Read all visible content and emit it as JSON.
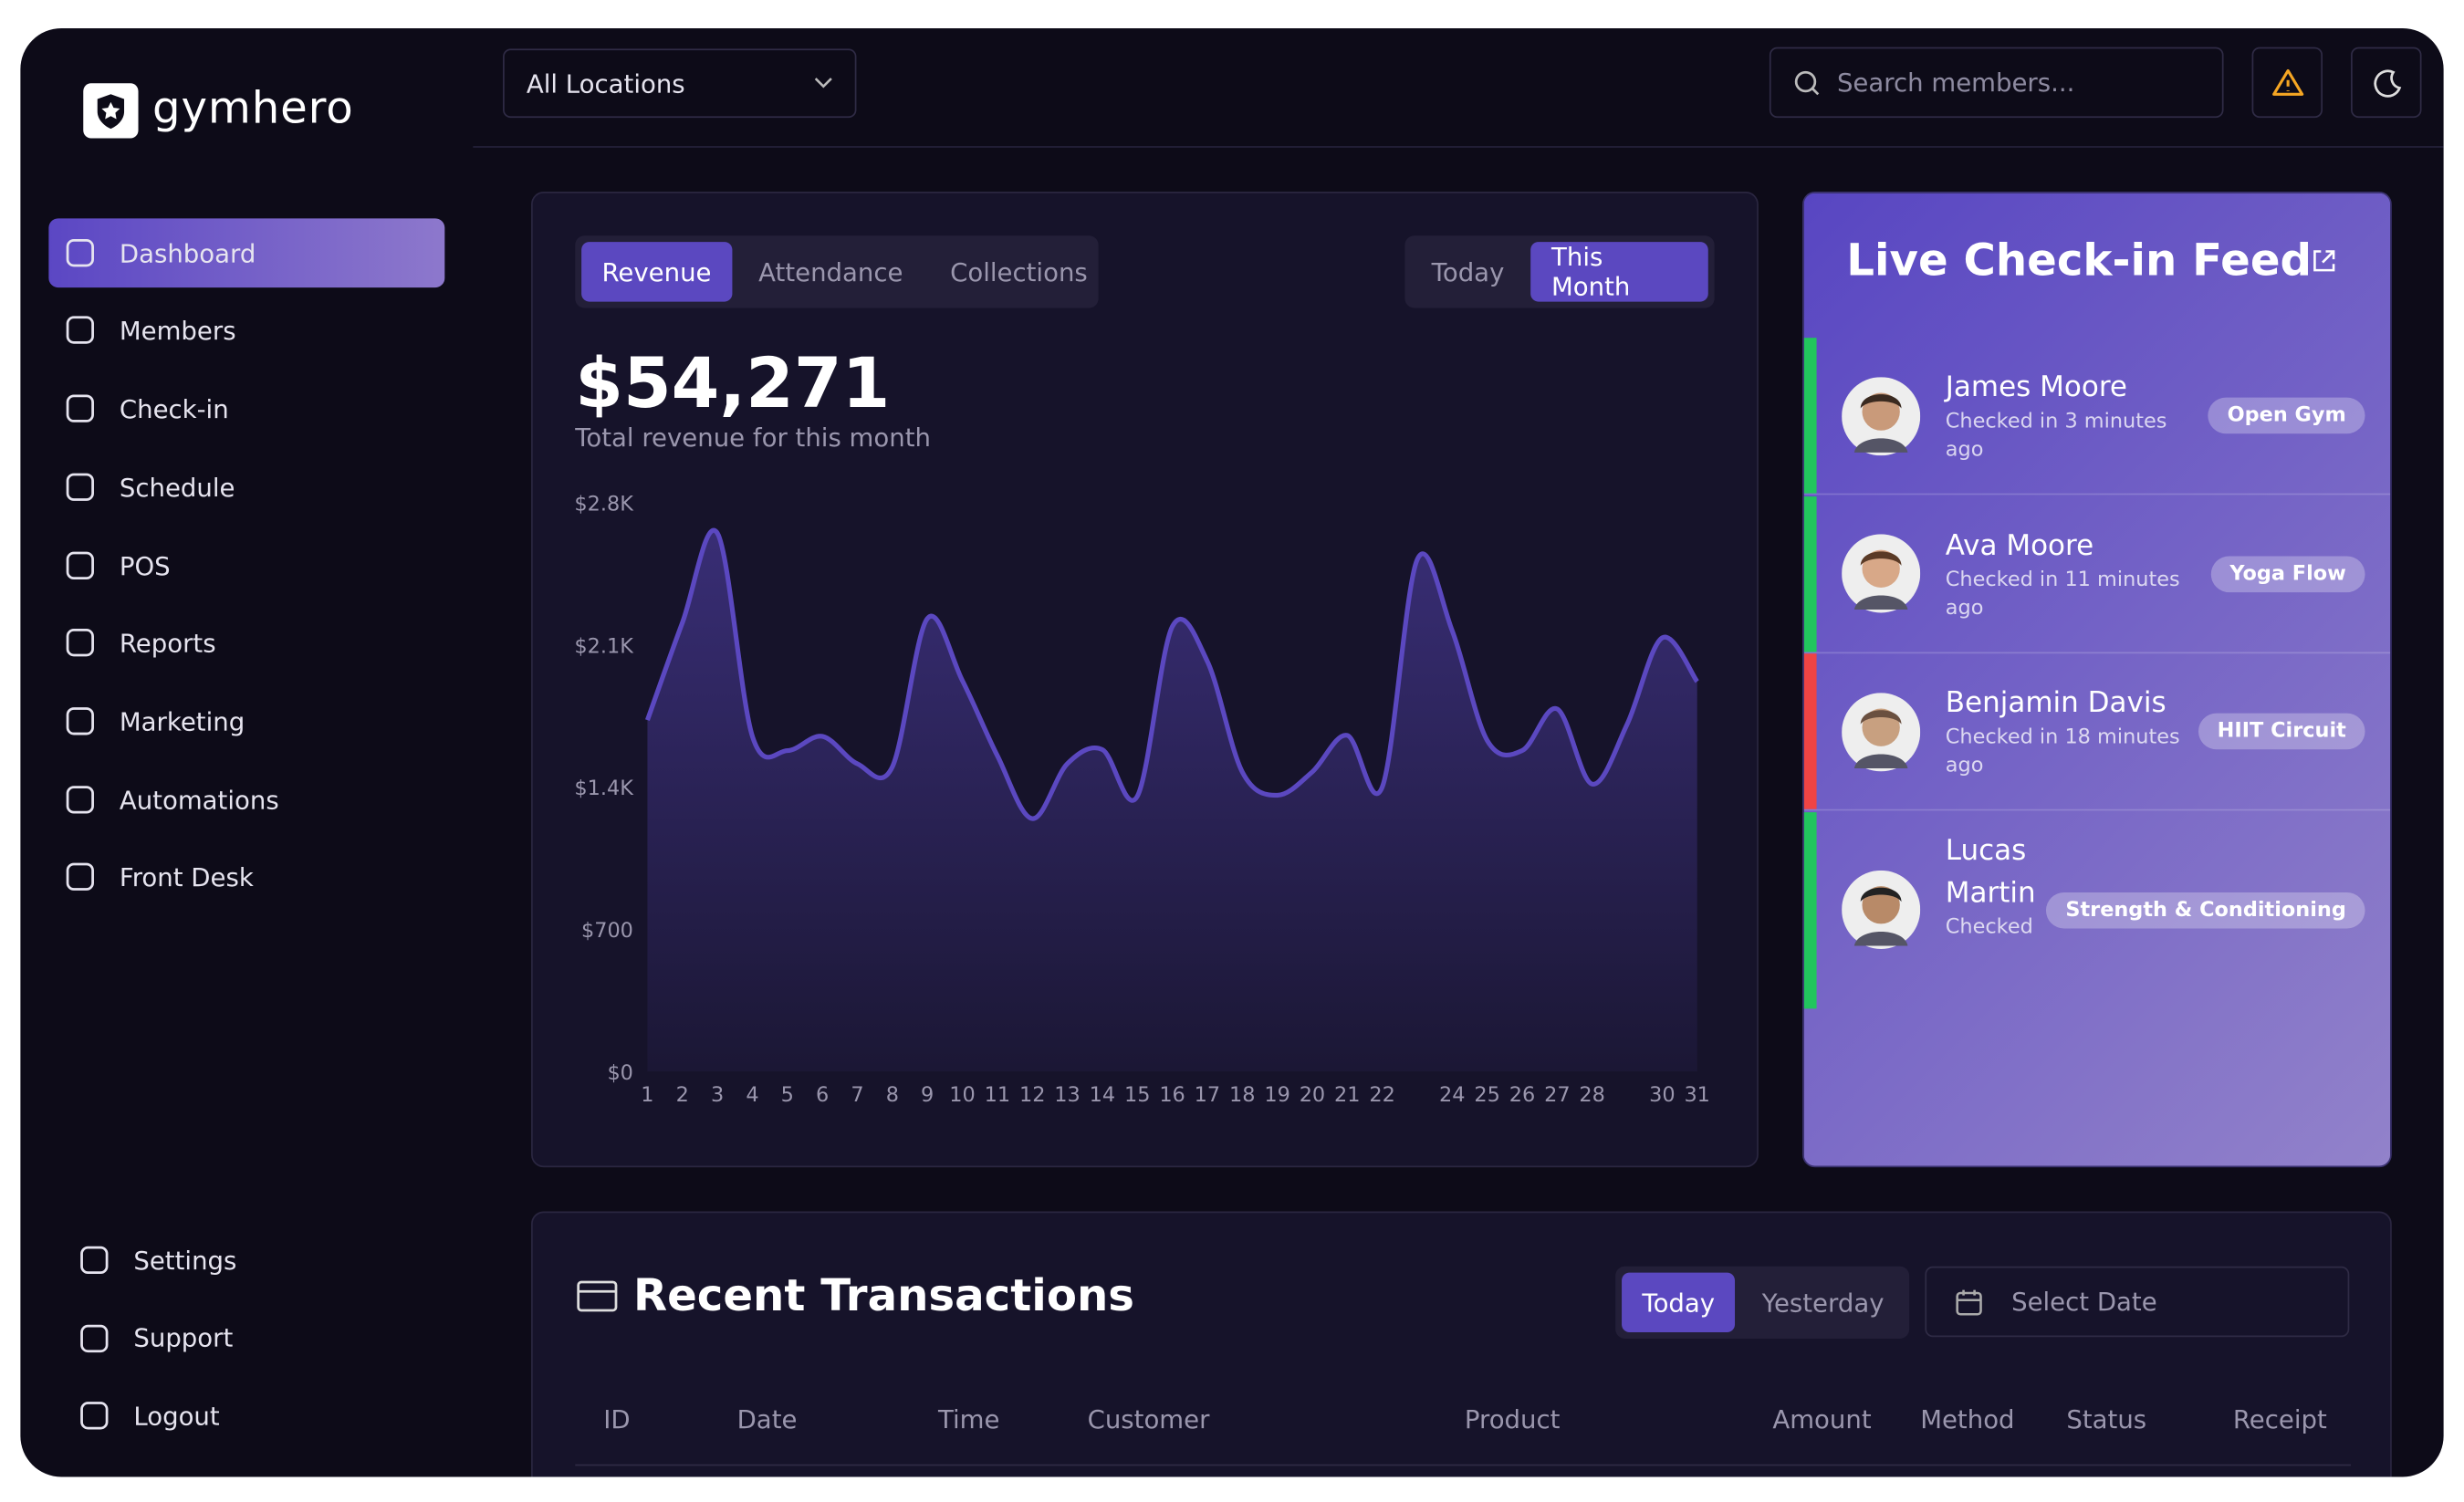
{
  "brand": "gymhero",
  "nav": [
    "Dashboard",
    "Members",
    "Check-in",
    "Schedule",
    "POS",
    "Reports",
    "Marketing",
    "Automations",
    "Front Desk"
  ],
  "nav_bottom": [
    "Settings",
    "Support",
    "Logout"
  ],
  "header": {
    "location": "All Locations",
    "search_placeholder": "Search members..."
  },
  "revenue_panel": {
    "tabs": [
      "Revenue",
      "Attendance",
      "Collections"
    ],
    "periods": [
      "Today",
      "This Month"
    ],
    "total": "$54,271",
    "total_caption": "Total revenue for this month"
  },
  "chart_data": {
    "type": "area",
    "color": "#5b48c0",
    "categories": [
      "1",
      "2",
      "3",
      "4",
      "5",
      "6",
      "7",
      "8",
      "9",
      "10",
      "11",
      "12",
      "13",
      "14",
      "15",
      "16",
      "17",
      "18",
      "19",
      "20",
      "21",
      "22",
      null,
      "24",
      "25",
      "26",
      "27",
      "28",
      null,
      "30",
      "31"
    ],
    "values": [
      1730,
      2210,
      2650,
      1650,
      1580,
      1650,
      1515,
      1500,
      2230,
      1925,
      1555,
      1245,
      1515,
      1585,
      1355,
      2190,
      2020,
      1475,
      1360,
      1475,
      1655,
      1400,
      2520,
      2170,
      1630,
      1580,
      1785,
      1415,
      1710,
      2135,
      1920
    ],
    "ylim": [
      0,
      2800
    ],
    "yticks": [
      {
        "value": 0,
        "label": "$0"
      },
      {
        "value": 700,
        "label": "$700"
      },
      {
        "value": 1400,
        "label": "$1.4K"
      },
      {
        "value": 2100,
        "label": "$2.1K"
      },
      {
        "value": 2800,
        "label": "$2.8K"
      }
    ],
    "grid": false
  },
  "feed": {
    "title": "Live Check-in Feed",
    "items": [
      {
        "name": "James Moore",
        "status": "Checked in 3 minutes ago",
        "class": "Open Gym",
        "color": "#22c55e"
      },
      {
        "name": "Ava Moore",
        "status": "Checked in 11 minutes ago",
        "class": "Yoga Flow",
        "color": "#22c55e"
      },
      {
        "name": "Benjamin Davis",
        "status": "Checked in 18 minutes ago",
        "class": "HIIT Circuit",
        "color": "#ef4444"
      },
      {
        "name": "Lucas Martin",
        "status": "Checked",
        "class": "Strength & Conditioning",
        "color": "#22c55e"
      }
    ]
  },
  "transactions": {
    "title": "Recent Transactions",
    "tabs": [
      "Today",
      "Yesterday"
    ],
    "date_placeholder": "Select Date",
    "columns": [
      "ID",
      "Date",
      "Time",
      "Customer",
      "Product",
      "Amount",
      "Method",
      "Status",
      "Receipt"
    ]
  }
}
